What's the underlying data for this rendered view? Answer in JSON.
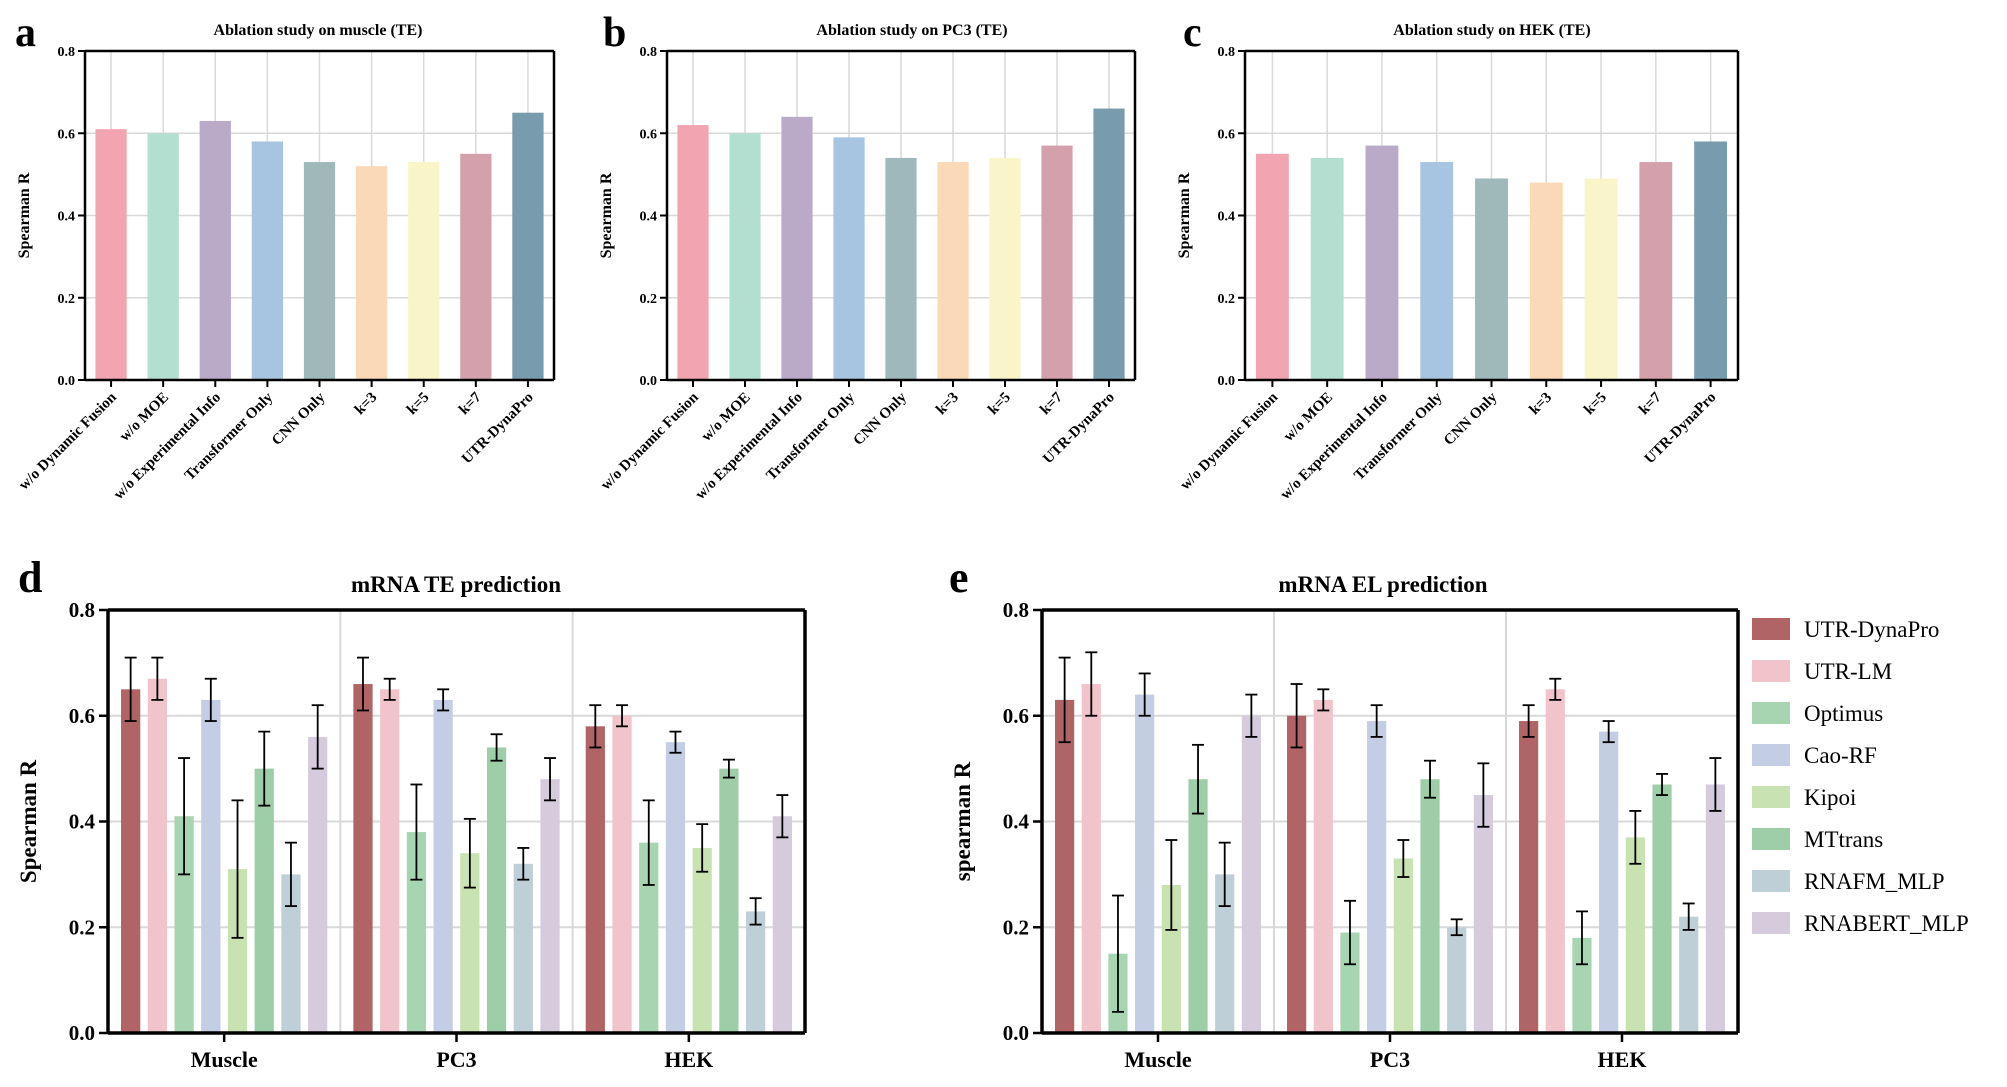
{
  "panel_letters": [
    "a",
    "b",
    "c",
    "d",
    "e"
  ],
  "chart_data": [
    {
      "id": "a",
      "type": "bar",
      "title": "Ablation study on muscle (TE)",
      "ylabel": "Spearman R",
      "xlabel": "",
      "ylim": [
        0,
        0.8
      ],
      "yticks": [
        "0.0",
        "0.2",
        "0.4",
        "0.6",
        "0.8"
      ],
      "grid": true,
      "categories": [
        "w/o Dynamic Fusion",
        "w/o MOE",
        "w/o Experimental Info",
        "Transformer Only",
        "CNN Only",
        "k=3",
        "k=5",
        "k=7",
        "UTR-DynaPro"
      ],
      "values": [
        0.61,
        0.6,
        0.63,
        0.58,
        0.53,
        0.52,
        0.53,
        0.55,
        0.65
      ],
      "colors": [
        "#f2a5b0",
        "#b3dfd0",
        "#bba9c8",
        "#a7c4e0",
        "#9fb8ba",
        "#fad9b7",
        "#f9f5c9",
        "#d4a0ab",
        "#789cae"
      ]
    },
    {
      "id": "b",
      "type": "bar",
      "title": "Ablation study on PC3 (TE)",
      "ylabel": "Spearman R",
      "xlabel": "",
      "ylim": [
        0,
        0.8
      ],
      "yticks": [
        "0.0",
        "0.2",
        "0.4",
        "0.6",
        "0.8"
      ],
      "grid": true,
      "categories": [
        "w/o Dynamic Fusion",
        "w/o MOE",
        "w/o Experimental Info",
        "Transformer Only",
        "CNN Only",
        "k=3",
        "k=5",
        "k=7",
        "UTR-DynaPro"
      ],
      "values": [
        0.62,
        0.6,
        0.64,
        0.59,
        0.54,
        0.53,
        0.54,
        0.57,
        0.66
      ],
      "colors": [
        "#f2a5b0",
        "#b3dfd0",
        "#bba9c8",
        "#a7c4e0",
        "#9fb8ba",
        "#fad9b7",
        "#f9f5c9",
        "#d4a0ab",
        "#789cae"
      ]
    },
    {
      "id": "c",
      "type": "bar",
      "title": "Ablation study on HEK (TE)",
      "ylabel": "Spearman R",
      "xlabel": "",
      "ylim": [
        0,
        0.8
      ],
      "yticks": [
        "0.0",
        "0.2",
        "0.4",
        "0.6",
        "0.8"
      ],
      "grid": true,
      "categories": [
        "w/o Dynamic Fusion",
        "w/o MOE",
        "w/o Experimental Info",
        "Transformer Only",
        "CNN Only",
        "k=3",
        "k=5",
        "k=7",
        "UTR-DynaPro"
      ],
      "values": [
        0.55,
        0.54,
        0.57,
        0.53,
        0.49,
        0.48,
        0.49,
        0.53,
        0.58
      ],
      "colors": [
        "#f2a5b0",
        "#b3dfd0",
        "#bba9c8",
        "#a7c4e0",
        "#9fb8ba",
        "#fad9b7",
        "#f9f5c9",
        "#d4a0ab",
        "#789cae"
      ]
    },
    {
      "id": "d",
      "type": "bar",
      "title": "mRNA TE prediction",
      "ylabel": "Spearman R",
      "xlabel": "",
      "ylim": [
        0,
        0.8
      ],
      "yticks": [
        "0.0",
        "0.2",
        "0.4",
        "0.6",
        "0.8"
      ],
      "grid": true,
      "categories": [
        "Muscle",
        "PC3",
        "HEK"
      ],
      "series": [
        {
          "name": "UTR-DynaPro",
          "color": "#b06466",
          "values": [
            0.65,
            0.66,
            0.58
          ],
          "errors": [
            0.06,
            0.05,
            0.04
          ]
        },
        {
          "name": "UTR-LM",
          "color": "#f0c4ca",
          "values": [
            0.67,
            0.65,
            0.6
          ],
          "errors": [
            0.04,
            0.02,
            0.02
          ]
        },
        {
          "name": "Optimus",
          "color": "#a7d4b1",
          "values": [
            0.41,
            0.38,
            0.36
          ],
          "errors": [
            0.11,
            0.09,
            0.08
          ]
        },
        {
          "name": "Cao-RF",
          "color": "#c3cde4",
          "values": [
            0.63,
            0.63,
            0.55
          ],
          "errors": [
            0.04,
            0.02,
            0.02
          ]
        },
        {
          "name": "Kipoi",
          "color": "#c8e2b2",
          "values": [
            0.31,
            0.34,
            0.35
          ],
          "errors": [
            0.13,
            0.065,
            0.045
          ]
        },
        {
          "name": "MTtrans",
          "color": "#9ecea8",
          "values": [
            0.5,
            0.54,
            0.5
          ],
          "errors": [
            0.07,
            0.025,
            0.017
          ]
        },
        {
          "name": "RNAFM_MLP",
          "color": "#bfcfd8",
          "values": [
            0.3,
            0.32,
            0.23
          ],
          "errors": [
            0.06,
            0.03,
            0.025
          ]
        },
        {
          "name": "RNABERT_MLP",
          "color": "#d5cbdc",
          "values": [
            0.56,
            0.48,
            0.41
          ],
          "errors": [
            0.06,
            0.04,
            0.04
          ]
        }
      ]
    },
    {
      "id": "e",
      "type": "bar",
      "title": "mRNA EL prediction",
      "ylabel": "spearman R",
      "xlabel": "",
      "ylim": [
        0,
        0.8
      ],
      "yticks": [
        "0.0",
        "0.2",
        "0.4",
        "0.6",
        "0.8"
      ],
      "grid": true,
      "legend": "right",
      "categories": [
        "Muscle",
        "PC3",
        "HEK"
      ],
      "series": [
        {
          "name": "UTR-DynaPro",
          "color": "#b06466",
          "values": [
            0.63,
            0.6,
            0.59
          ],
          "errors": [
            0.08,
            0.06,
            0.03
          ]
        },
        {
          "name": "UTR-LM",
          "color": "#f0c4ca",
          "values": [
            0.66,
            0.63,
            0.65
          ],
          "errors": [
            0.06,
            0.02,
            0.02
          ]
        },
        {
          "name": "Optimus",
          "color": "#a7d4b1",
          "values": [
            0.15,
            0.19,
            0.18
          ],
          "errors": [
            0.11,
            0.06,
            0.05
          ]
        },
        {
          "name": "Cao-RF",
          "color": "#c3cde4",
          "values": [
            0.64,
            0.59,
            0.57
          ],
          "errors": [
            0.04,
            0.03,
            0.02
          ]
        },
        {
          "name": "Kipoi",
          "color": "#c8e2b2",
          "values": [
            0.28,
            0.33,
            0.37
          ],
          "errors": [
            0.085,
            0.035,
            0.05
          ]
        },
        {
          "name": "MTtrans",
          "color": "#9ecea8",
          "values": [
            0.48,
            0.48,
            0.47
          ],
          "errors": [
            0.065,
            0.035,
            0.02
          ]
        },
        {
          "name": "RNAFM_MLP",
          "color": "#bfcfd8",
          "values": [
            0.3,
            0.2,
            0.22
          ],
          "errors": [
            0.06,
            0.015,
            0.025
          ]
        },
        {
          "name": "RNABERT_MLP",
          "color": "#d5cbdc",
          "values": [
            0.6,
            0.45,
            0.47
          ],
          "errors": [
            0.04,
            0.06,
            0.05
          ]
        }
      ]
    }
  ]
}
